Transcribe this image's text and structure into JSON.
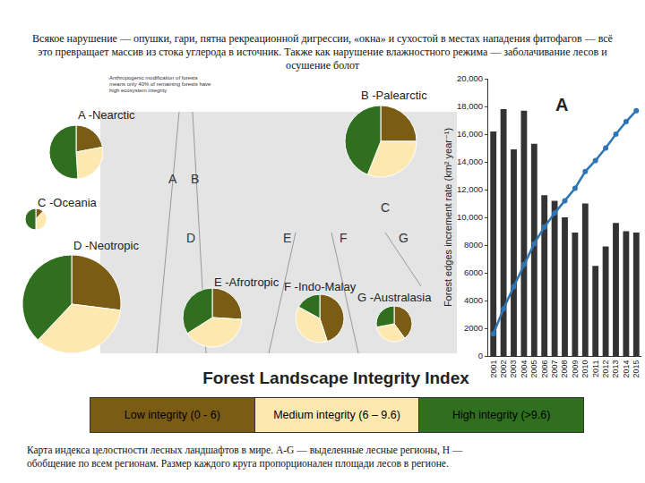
{
  "header": "Всякое нарушение — опушки, гари, пятна рекреационной дигрессии, «окна» и сухостой в местах нападения фитофагов — всё это превращает массив из стока углерода в источник. Также как нарушение влажностного режима — заболачивание лесов и осушение болот",
  "caption": "Карта индекса целостности лесных ландшафтов в мире. A-G — выделенные лесные регионы, H — обобщение по всем регионам. Размер каждого круга пропорционален площади лесов в регионе.",
  "map": {
    "inset_title": "Anthropogenic modification of forests means only 40% of remaining forests have high ecosystem integrity",
    "region_letters": [
      "A",
      "B",
      "C",
      "D",
      "E",
      "F",
      "G"
    ]
  },
  "legend_bar": {
    "title": "Forest Landscape Integrity Index",
    "items": [
      {
        "label": "Low integrity (0 - 6)",
        "color": "#7b5c14"
      },
      {
        "label": "Medium integrity (6 – 9.6)",
        "color": "#fde8b0"
      },
      {
        "label": "High integrity (>9.6)",
        "color": "#2f6f1f"
      }
    ]
  },
  "chart_data": [
    {
      "type": "pie",
      "title": "A -Nearctic",
      "values": [
        22,
        27,
        51
      ],
      "colors": [
        "#7b5c14",
        "#fde8b0",
        "#2f6f1f"
      ]
    },
    {
      "type": "pie",
      "title": "B -Palearctic",
      "values": [
        25,
        31,
        44
      ],
      "colors": [
        "#7b5c14",
        "#fde8b0",
        "#2f6f1f"
      ]
    },
    {
      "type": "pie",
      "title": "C -Oceania",
      "values": [
        12,
        38,
        50
      ],
      "colors": [
        "#7b5c14",
        "#fde8b0",
        "#2f6f1f"
      ]
    },
    {
      "type": "pie",
      "title": "D -Neotropic",
      "values": [
        27,
        35,
        38
      ],
      "colors": [
        "#7b5c14",
        "#fde8b0",
        "#2f6f1f"
      ]
    },
    {
      "type": "pie",
      "title": "E -Afrotropic",
      "values": [
        26,
        40,
        34
      ],
      "colors": [
        "#7b5c14",
        "#fde8b0",
        "#2f6f1f"
      ]
    },
    {
      "type": "pie",
      "title": "F -Indo-Malay",
      "values": [
        45,
        38,
        17
      ],
      "colors": [
        "#7b5c14",
        "#fde8b0",
        "#2f6f1f"
      ]
    },
    {
      "type": "pie",
      "title": "G -Australasia",
      "values": [
        40,
        32,
        28
      ],
      "colors": [
        "#7b5c14",
        "#fde8b0",
        "#2f6f1f"
      ]
    },
    {
      "type": "bar",
      "title": "A",
      "ylabel": "Forest edges increment rate (km² year⁻¹)",
      "categories": [
        "2001",
        "2002",
        "2003",
        "2004",
        "2005",
        "2006",
        "2007",
        "2008",
        "2009",
        "2010",
        "2011",
        "2012",
        "2013",
        "2014",
        "2015"
      ],
      "series": [
        {
          "type": "bar",
          "color": "#333333",
          "values": [
            16200,
            17800,
            14900,
            17700,
            15300,
            11600,
            11200,
            10000,
            8900,
            11000,
            6500,
            7900,
            9600,
            9000,
            8900
          ]
        },
        {
          "type": "line",
          "color": "#2e75b6",
          "marker": "circle",
          "line_style": "solid",
          "values": [
            1600,
            3400,
            5000,
            6600,
            8100,
            9300,
            10300,
            11200,
            12100,
            13300,
            14100,
            15000,
            16000,
            16900,
            17700
          ]
        }
      ],
      "ylim": [
        0,
        20000
      ],
      "yticks": [
        0,
        2000,
        4000,
        6000,
        8000,
        {
          "value": 10000,
          "label": "10,000"
        },
        {
          "value": 12000,
          "label": "12,000"
        },
        {
          "value": 14000,
          "label": "14,000"
        },
        {
          "value": 16000,
          "label": "16,000"
        },
        {
          "value": 18000,
          "label": "18,000"
        },
        {
          "value": 20000,
          "label": "20,000"
        }
      ],
      "grid": false
    }
  ]
}
